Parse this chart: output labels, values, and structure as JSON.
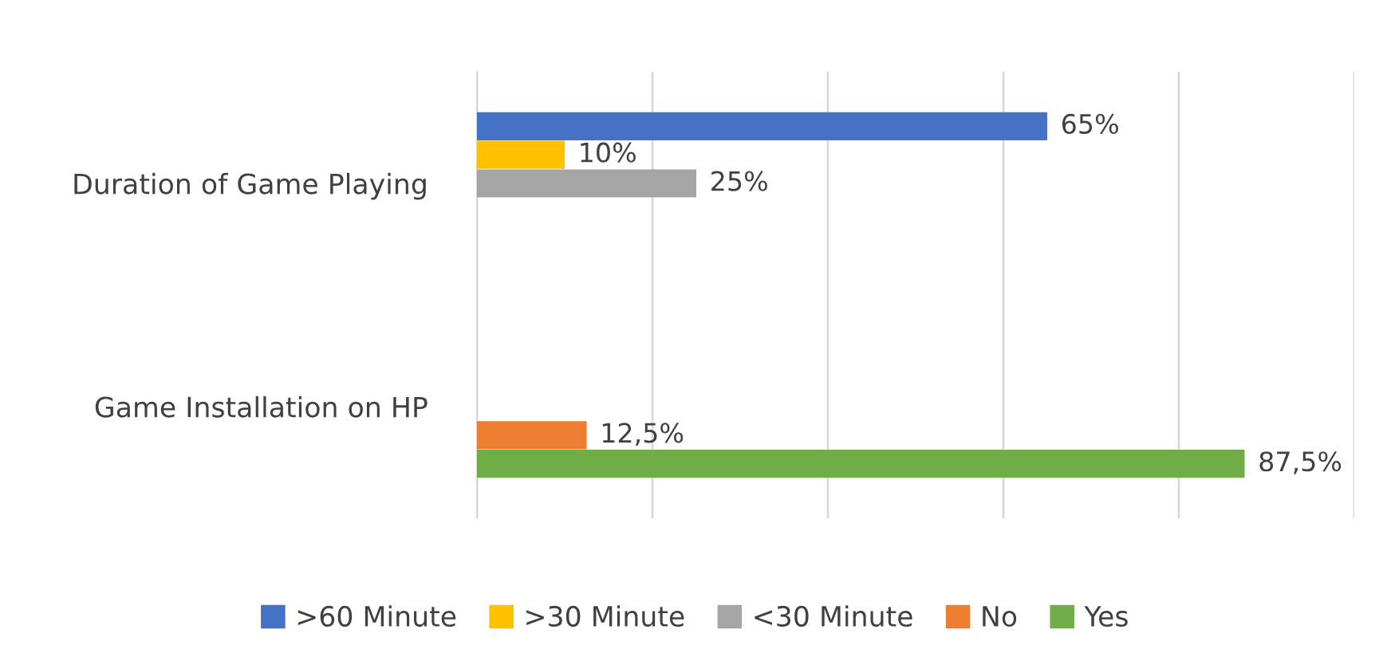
{
  "chart_data": {
    "type": "bar",
    "orientation": "horizontal",
    "categories": [
      "Duration of Game Playing",
      "Game Installation on HP"
    ],
    "series": [
      {
        "name": ">60 Minute",
        "color": "#4472c4",
        "values": [
          65,
          null
        ],
        "value_labels": [
          "65%",
          null
        ]
      },
      {
        "name": ">30 Minute",
        "color": "#ffc000",
        "values": [
          10,
          null
        ],
        "value_labels": [
          "10%",
          null
        ]
      },
      {
        "name": "<30 Minute",
        "color": "#a5a5a5",
        "values": [
          25,
          null
        ],
        "value_labels": [
          "25%",
          null
        ]
      },
      {
        "name": "No",
        "color": "#ed7d31",
        "values": [
          null,
          12.5
        ],
        "value_labels": [
          null,
          "12,5%"
        ]
      },
      {
        "name": "Yes",
        "color": "#70ad47",
        "values": [
          null,
          87.5
        ],
        "value_labels": [
          null,
          "87,5%"
        ]
      }
    ],
    "xlim": [
      0,
      100
    ],
    "xticks": [
      0,
      20,
      40,
      60,
      80,
      100
    ],
    "tick_labels": "y",
    "grid": "x",
    "legend": "bottom"
  }
}
